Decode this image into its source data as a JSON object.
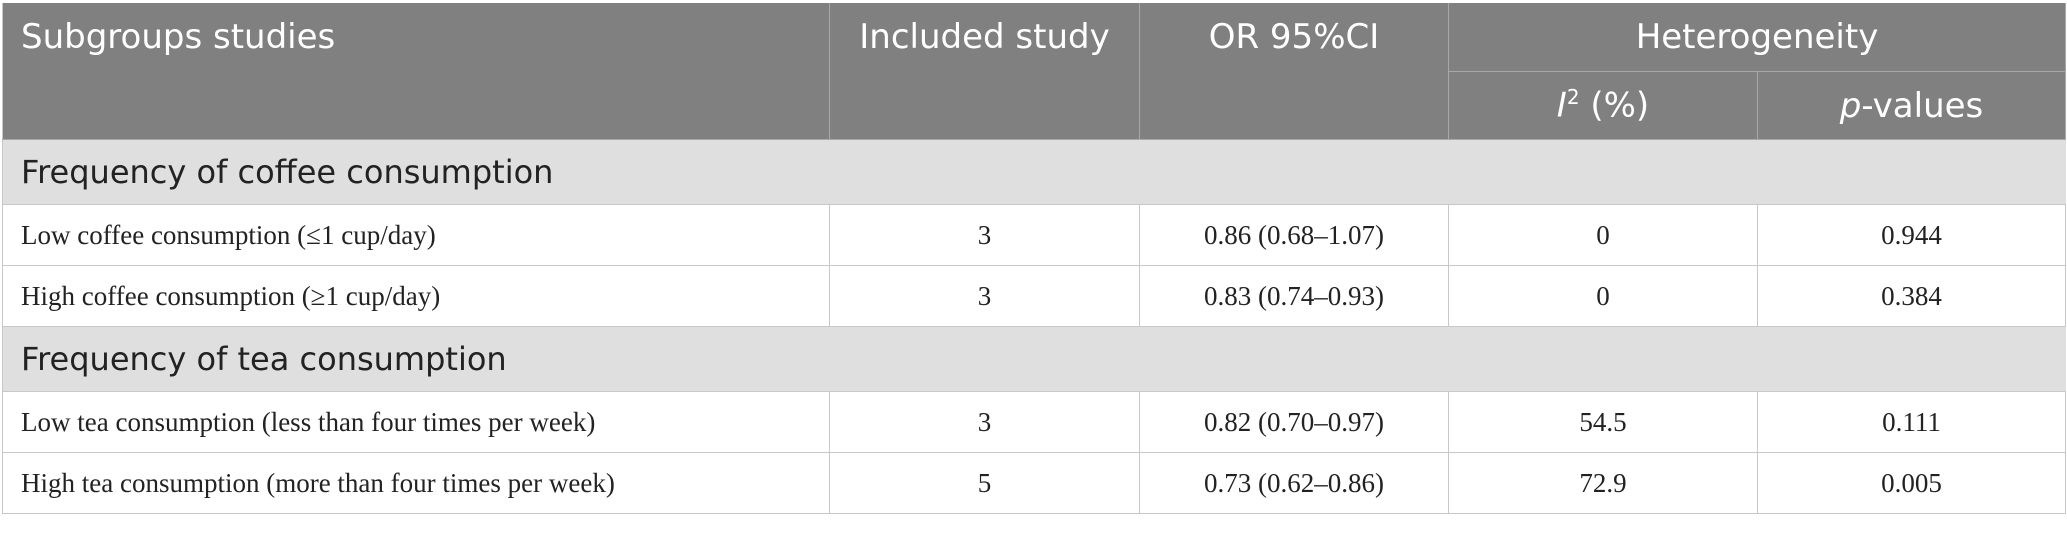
{
  "header": {
    "subgroups": "Subgroups studies",
    "included": "Included study",
    "or": "OR 95%CI",
    "heterogeneity": "Heterogeneity",
    "i2_letter": "I",
    "i2_sup": "2",
    "i2_unit": " (%)",
    "p_letter": "p",
    "p_rest": "-values"
  },
  "sections": [
    {
      "title": "Frequency of coffee consumption",
      "rows": [
        {
          "label": "Low coffee consumption (≤1 cup/day)",
          "included": "3",
          "or": "0.86 (0.68–1.07)",
          "i2": "0",
          "p": "0.944"
        },
        {
          "label": "High coffee consumption (≥1 cup/day)",
          "included": "3",
          "or": "0.83 (0.74–0.93)",
          "i2": "0",
          "p": "0.384"
        }
      ]
    },
    {
      "title": "Frequency of tea consumption",
      "rows": [
        {
          "label": "Low tea consumption (less than four times per week)",
          "included": "3",
          "or": "0.82 (0.70–0.97)",
          "i2": "54.5",
          "p": "0.111"
        },
        {
          "label": "High tea consumption (more than four times per week)",
          "included": "5",
          "or": "0.73 (0.62–0.86)",
          "i2": "72.9",
          "p": "0.005"
        }
      ]
    }
  ]
}
